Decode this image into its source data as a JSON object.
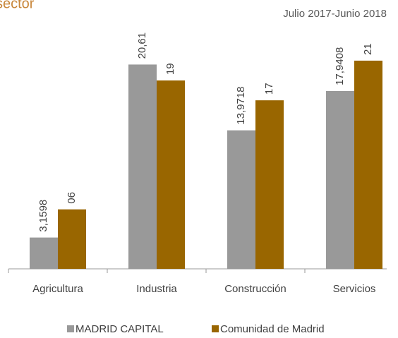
{
  "chart_data": {
    "type": "bar",
    "title": "sector",
    "subtitle": "Julio 2017-Junio 2018",
    "categories": [
      "Agricultura",
      "Industria",
      "Construcción",
      "Servicios"
    ],
    "series": [
      {
        "name": "MADRID CAPITAL",
        "color": "#999999",
        "values": [
          3.1598,
          20.61,
          13.9718,
          17.9408
        ],
        "value_labels": [
          "3,1598",
          "20,61",
          "13,9718",
          "17,9408"
        ]
      },
      {
        "name": "Comunidad de Madrid",
        "color": "#996600",
        "values": [
          6,
          19,
          17,
          21
        ],
        "value_labels": [
          "06",
          "19",
          "17",
          "21"
        ]
      }
    ],
    "grid": false,
    "legend": "bottom"
  }
}
